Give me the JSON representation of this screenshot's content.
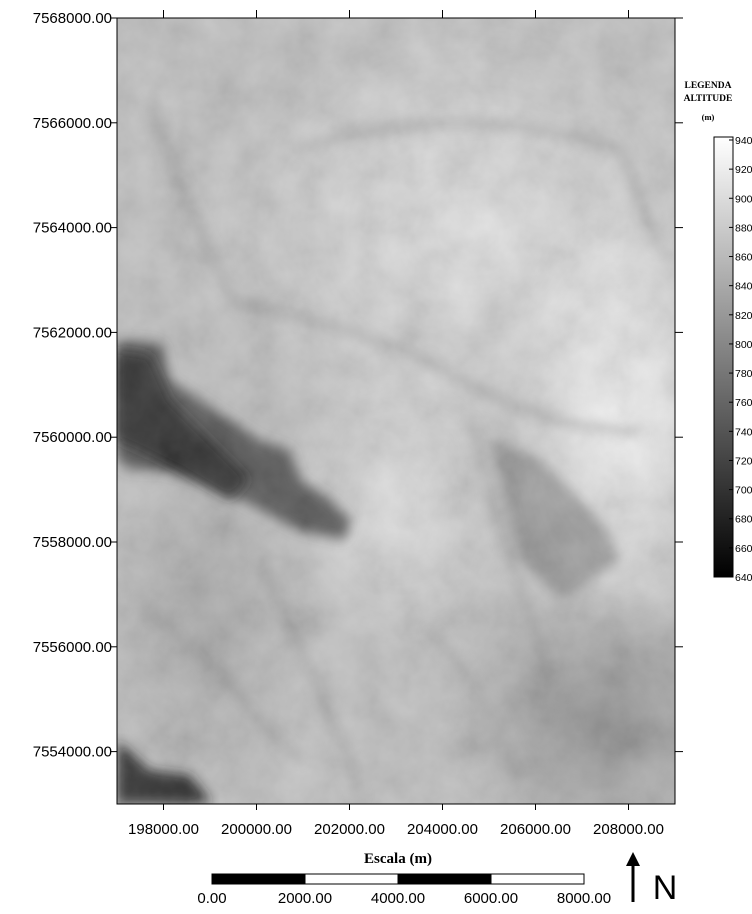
{
  "map": {
    "xlim": [
      197000,
      209000
    ],
    "ylim": [
      7553000,
      7568000
    ],
    "xticks": [
      {
        "value": 198000,
        "label": "198000.00"
      },
      {
        "value": 200000,
        "label": "200000.00"
      },
      {
        "value": 202000,
        "label": "202000.00"
      },
      {
        "value": 204000,
        "label": "204000.00"
      },
      {
        "value": 206000,
        "label": "206000.00"
      },
      {
        "value": 208000,
        "label": "208000.00"
      }
    ],
    "yticks": [
      {
        "value": 7554000,
        "label": "7554000.00"
      },
      {
        "value": 7556000,
        "label": "7556000.00"
      },
      {
        "value": 7558000,
        "label": "7558000.00"
      },
      {
        "value": 7560000,
        "label": "7560000.00"
      },
      {
        "value": 7562000,
        "label": "7562000.00"
      },
      {
        "value": 7564000,
        "label": "7564000.00"
      },
      {
        "value": 7566000,
        "label": "7566000.00"
      },
      {
        "value": 7568000,
        "label": "7568000.00"
      }
    ],
    "legend": {
      "title_line1": "LEGENDA",
      "title_line2": "ALTITUDE",
      "unit": "(m)",
      "clim": [
        640,
        940
      ],
      "ticks": [
        640,
        660,
        680,
        700,
        720,
        740,
        760,
        780,
        800,
        820,
        840,
        860,
        880,
        900,
        920,
        940
      ]
    },
    "scale_bar": {
      "title": "Escala (m)",
      "ticks": [
        {
          "value": 0,
          "label": "0.00"
        },
        {
          "value": 2000,
          "label": "2000.00"
        },
        {
          "value": 4000,
          "label": "4000.00"
        },
        {
          "value": 6000,
          "label": "6000.00"
        },
        {
          "value": 8000,
          "label": "8000.00"
        }
      ]
    },
    "north": "N"
  }
}
